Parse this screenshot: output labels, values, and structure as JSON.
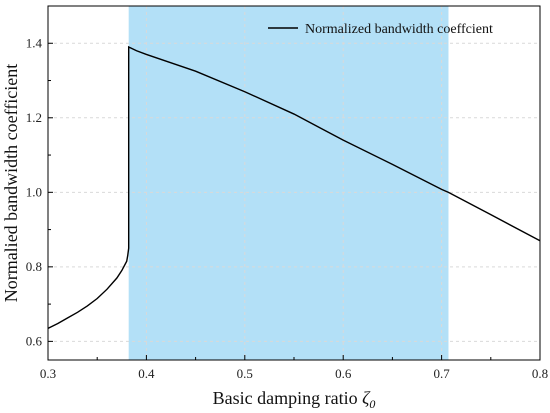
{
  "chart_data": {
    "type": "line",
    "title": "",
    "xlabel_main": "Basic damping ratio ",
    "xlabel_symbol": "ζ",
    "xlabel_subscript": "0",
    "ylabel": "Normalied bandwidth coefficient",
    "xlim": [
      0.3,
      0.8
    ],
    "ylim": [
      0.55,
      1.5
    ],
    "x_ticks": [
      "0.3",
      "0.4",
      "0.5",
      "0.6",
      "0.7",
      "0.8"
    ],
    "y_ticks": [
      "0.6",
      "0.8",
      "1.0",
      "1.2",
      "1.4"
    ],
    "grid": true,
    "legend_position": "top-right",
    "highlight_region": {
      "x_start": 0.382,
      "x_end": 0.707,
      "color": "#b3e0f7"
    },
    "line_color": "#000000",
    "series": [
      {
        "name": "Normalized bandwidth coeffcient",
        "x": [
          0.3,
          0.31,
          0.32,
          0.33,
          0.34,
          0.35,
          0.36,
          0.37,
          0.375,
          0.38,
          0.381,
          0.382,
          0.382,
          0.39,
          0.4,
          0.45,
          0.5,
          0.55,
          0.6,
          0.65,
          0.7,
          0.707,
          0.75,
          0.8
        ],
        "y": [
          0.635,
          0.648,
          0.663,
          0.678,
          0.695,
          0.715,
          0.74,
          0.77,
          0.79,
          0.815,
          0.83,
          0.85,
          1.39,
          1.38,
          1.37,
          1.325,
          1.27,
          1.21,
          1.14,
          1.075,
          1.008,
          1.0,
          0.94,
          0.87
        ]
      }
    ]
  }
}
